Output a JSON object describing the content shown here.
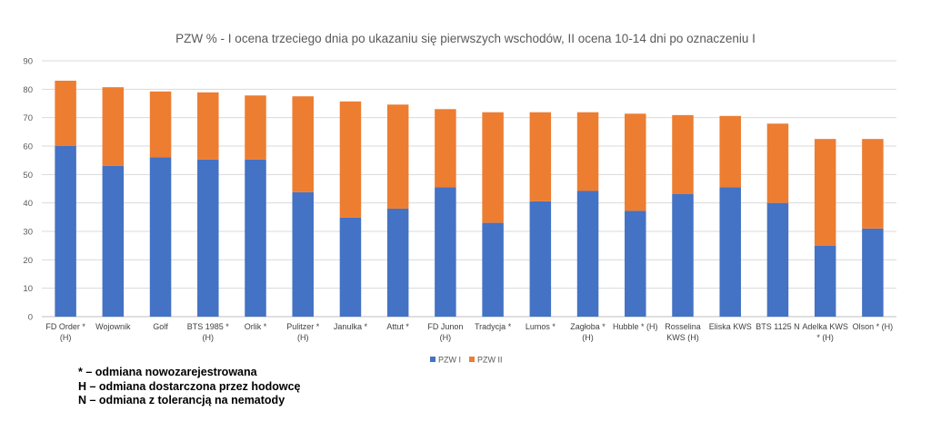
{
  "chart_data": {
    "type": "bar",
    "stacked": true,
    "title": "PZW % - I ocena trzeciego dnia po ukazaniu się pierwszych wschodów, II ocena 10-14 dni po oznaczeniu I",
    "xlabel": "",
    "ylabel": "",
    "ylim": [
      0,
      90
    ],
    "yticks": [
      0,
      10,
      20,
      30,
      40,
      50,
      60,
      70,
      80,
      90
    ],
    "grid": true,
    "legend_position": "bottom",
    "categories": [
      [
        "FD Order *",
        "(H)"
      ],
      [
        "Wojownik"
      ],
      [
        "Golf"
      ],
      [
        "BTS 1985 *",
        "(H)"
      ],
      [
        "Orlik *"
      ],
      [
        "Pulitzer *",
        "(H)"
      ],
      [
        "Janulka *"
      ],
      [
        "Attut *"
      ],
      [
        "FD Junon",
        "(H)"
      ],
      [
        "Tradycja *"
      ],
      [
        "Lumos *"
      ],
      [
        "Zagłoba *",
        "(H)"
      ],
      [
        "Hubble * (H)"
      ],
      [
        "Rosselina",
        "KWS (H)"
      ],
      [
        "Eliska KWS"
      ],
      [
        "BTS 1125 N"
      ],
      [
        "Adelka KWS",
        "* (H)"
      ],
      [
        "Olson * (H)"
      ]
    ],
    "series": [
      {
        "name": "PZW I",
        "color": "#4472C4",
        "values": [
          60,
          53,
          56,
          55.3,
          55.3,
          43.8,
          34.8,
          38,
          45.5,
          33,
          40.6,
          44.2,
          37.2,
          43.2,
          45.5,
          40,
          25,
          31
        ]
      },
      {
        "name": "PZW II",
        "color": "#ED7D31",
        "values": [
          23,
          27.7,
          23.2,
          23.6,
          22.5,
          33.7,
          40.9,
          36.6,
          27.5,
          38.9,
          31.3,
          27.7,
          34.2,
          27.7,
          25.1,
          27.9,
          37.5,
          31.5
        ]
      }
    ]
  },
  "notes": [
    "* – odmiana nowozarejestrowana",
    "H – odmiana dostarczona przez hodowcę",
    "N – odmiana z tolerancją na nematody"
  ]
}
